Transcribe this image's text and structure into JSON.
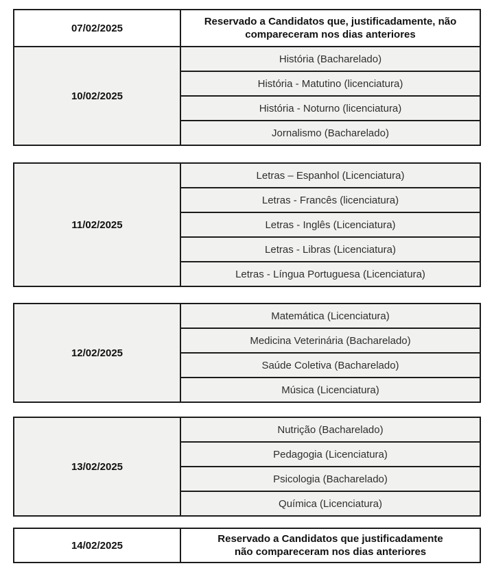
{
  "schedule": {
    "colors": {
      "row_background": "#f1f1ef",
      "reserved_row_background": "#ffffff",
      "border": "#1b1b1b",
      "text": "#1a1a1a"
    },
    "blocks": [
      {
        "reserved": {
          "date": "07/02/2025",
          "text": "Reservado a Candidatos que, justificadamente, não\ncompareceram nos dias anteriores"
        },
        "date": "10/02/2025",
        "courses": [
          "História (Bacharelado)",
          "História - Matutino (licenciatura)",
          "História - Noturno (licenciatura)",
          "Jornalismo (Bacharelado)"
        ]
      },
      {
        "date": "11/02/2025",
        "courses": [
          "Letras – Espanhol (Licenciatura)",
          "Letras - Francês (licenciatura)",
          "Letras - Inglês (Licenciatura)",
          "Letras - Libras (Licenciatura)",
          "Letras - Língua Portuguesa (Licenciatura)"
        ]
      },
      {
        "date": "12/02/2025",
        "courses": [
          "Matemática (Licenciatura)",
          "Medicina Veterinária (Bacharelado)",
          "Saúde Coletiva (Bacharelado)",
          "Música (Licenciatura)"
        ]
      },
      {
        "date": "13/02/2025",
        "courses": [
          "Nutrição (Bacharelado)",
          "Pedagogia (Licenciatura)",
          "Psicologia (Bacharelado)",
          "Química (Licenciatura)"
        ]
      },
      {
        "date": "14/02/2025",
        "reserved_text": "Reservado a Candidatos que justificadamente\nnão compareceram nos dias anteriores"
      }
    ]
  }
}
